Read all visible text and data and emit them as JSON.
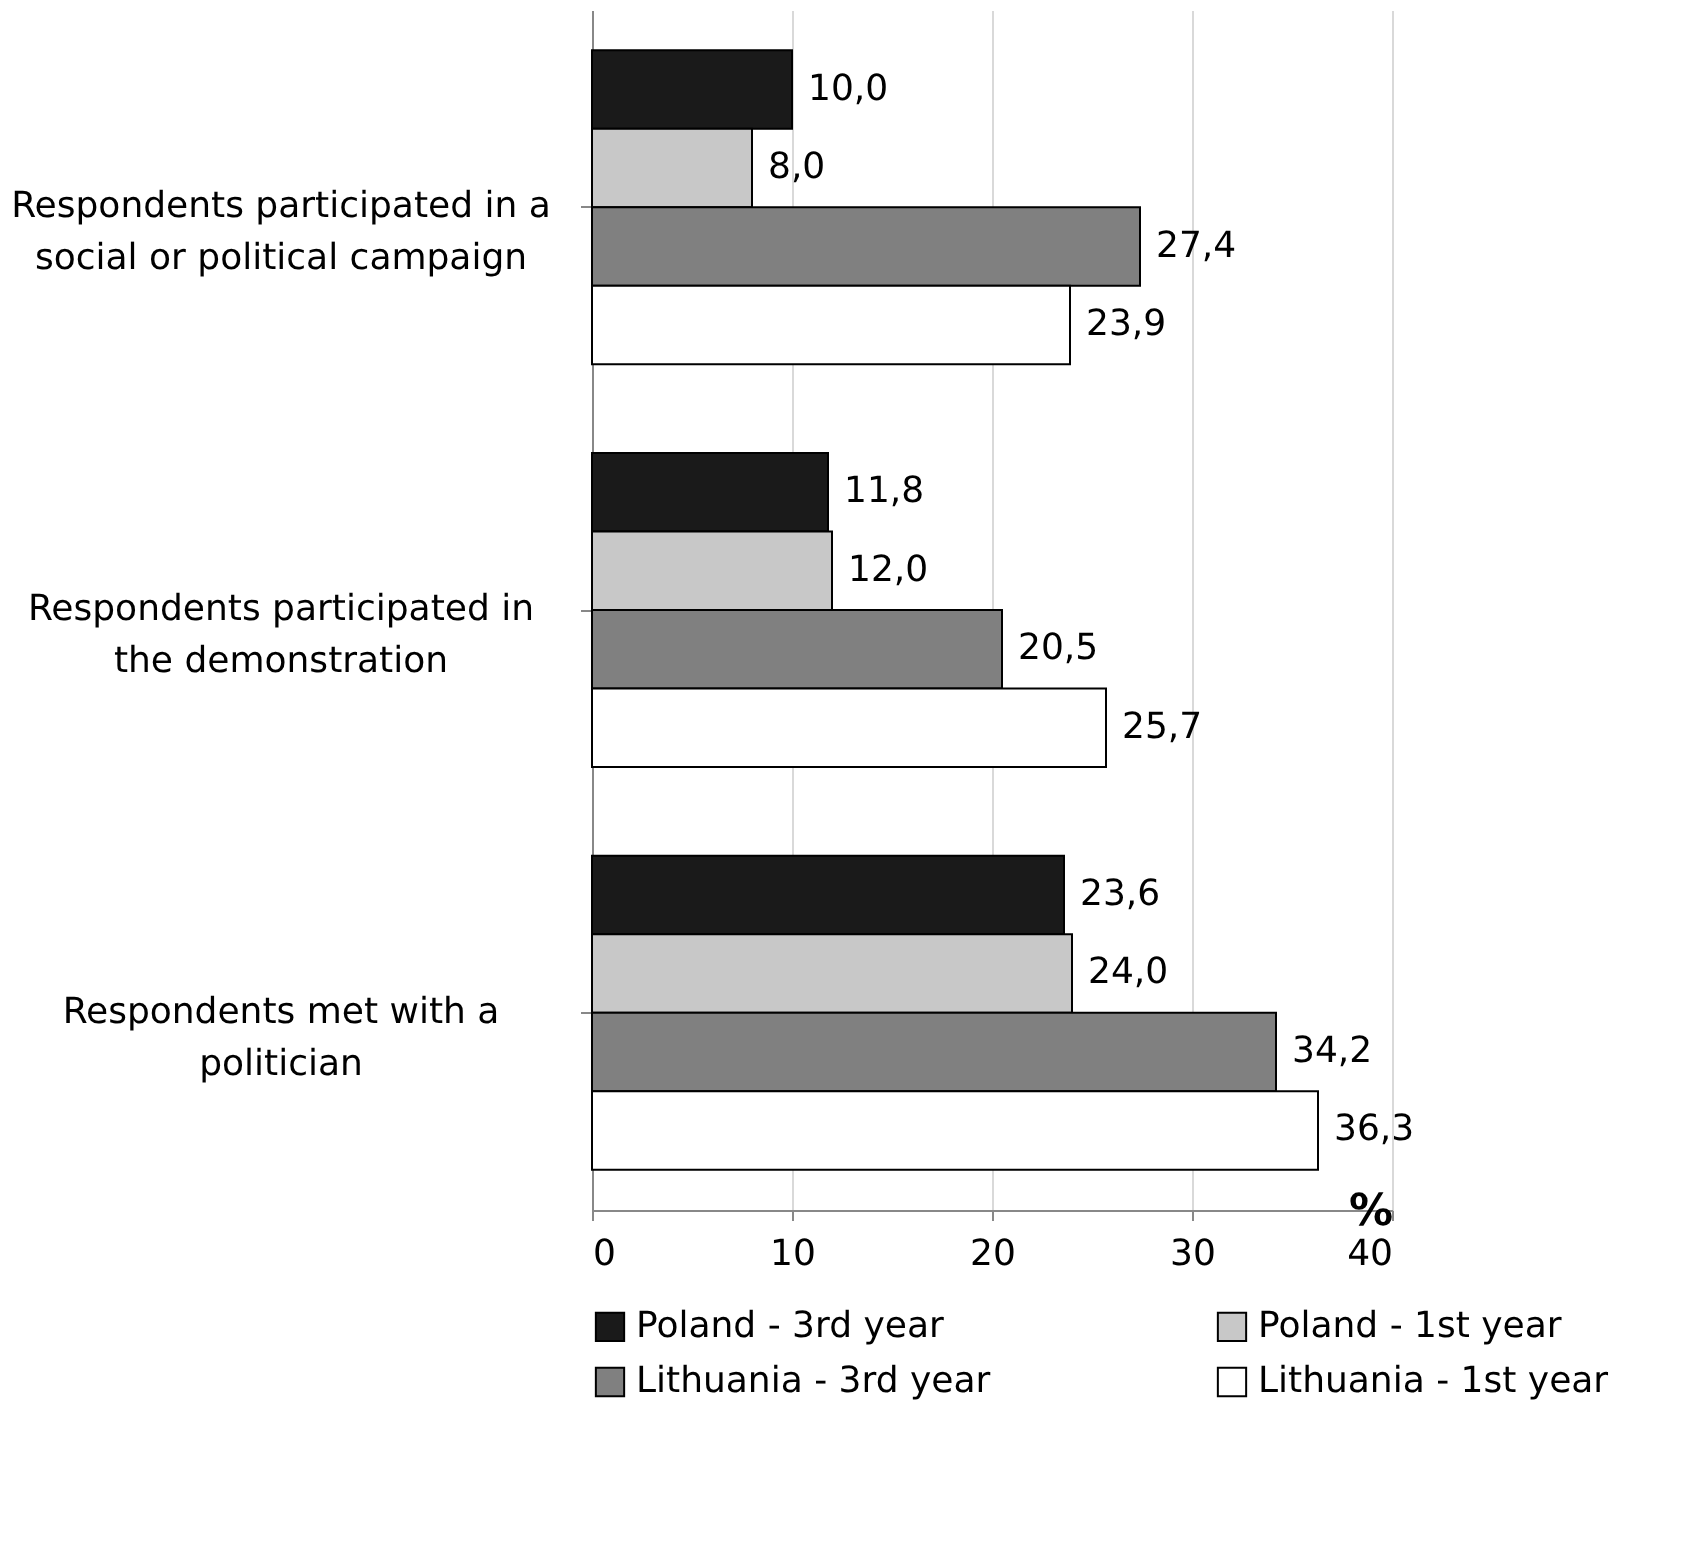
{
  "chart_data": {
    "type": "bar",
    "orientation": "horizontal",
    "categories": [
      "Respondents participated in a social or political campaign",
      "Respondents participated in the demonstration",
      "Respondents met with a politician"
    ],
    "series": [
      {
        "name": "Poland - 3rd year",
        "color": "#1a1a1a",
        "values": [
          10.0,
          11.8,
          23.6
        ],
        "value_labels": [
          "10,0",
          "11,8",
          "23,6"
        ]
      },
      {
        "name": "Poland - 1st year",
        "color": "#c8c8c8",
        "values": [
          8.0,
          12.0,
          24.0
        ],
        "value_labels": [
          "8,0",
          "12,0",
          "24,0"
        ]
      },
      {
        "name": "Lithuania - 3rd year",
        "color": "#808080",
        "values": [
          27.4,
          20.5,
          34.2
        ],
        "value_labels": [
          "27,4",
          "20,5",
          "34,2"
        ]
      },
      {
        "name": "Lithuania - 1st year",
        "color": "#ffffff",
        "values": [
          23.9,
          25.7,
          36.3
        ],
        "value_labels": [
          "23,9",
          "25,7",
          "36,3"
        ]
      }
    ],
    "xlabel": "%",
    "xlim": [
      0,
      40
    ],
    "xticks": [
      0,
      10,
      20,
      30,
      40
    ],
    "grid": "x",
    "legend": "bottom"
  }
}
